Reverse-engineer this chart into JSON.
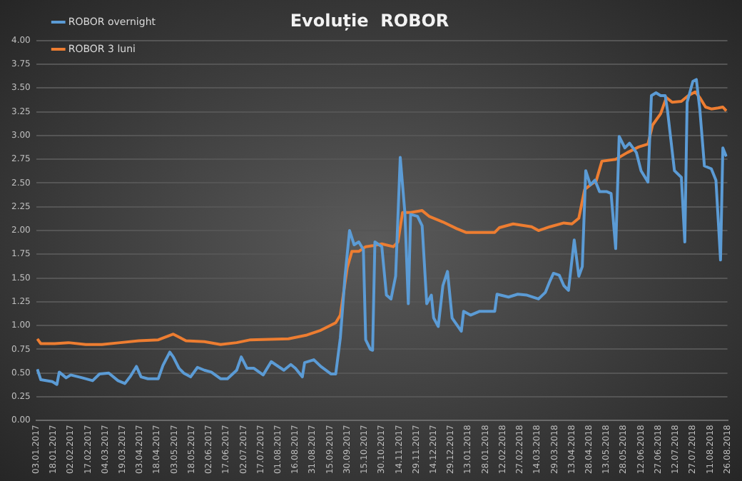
{
  "chart_data": {
    "type": "line",
    "title": "Evoluție  ROBOR",
    "legend": "top left",
    "grid": "y",
    "marker": "none",
    "line_style": "solid",
    "xlim": [
      "2017-01-03",
      "2018-08-26"
    ],
    "xticks": [
      {
        "value": "2017-01-03",
        "label": "03.01.2017"
      },
      {
        "value": "2017-01-18",
        "label": "18.01.2017"
      },
      {
        "value": "2017-02-02",
        "label": "02.02.2017"
      },
      {
        "value": "2017-02-17",
        "label": "17.02.2017"
      },
      {
        "value": "2017-03-04",
        "label": "04.03.2017"
      },
      {
        "value": "2017-03-19",
        "label": "19.03.2017"
      },
      {
        "value": "2017-04-03",
        "label": "03.04.2017"
      },
      {
        "value": "2017-04-18",
        "label": "18.04.2017"
      },
      {
        "value": "2017-05-03",
        "label": "03.05.2017"
      },
      {
        "value": "2017-05-18",
        "label": "18.05.2017"
      },
      {
        "value": "2017-06-02",
        "label": "02.06.2017"
      },
      {
        "value": "2017-06-17",
        "label": "17.06.2017"
      },
      {
        "value": "2017-07-02",
        "label": "02.07.2017"
      },
      {
        "value": "2017-07-17",
        "label": "17.07.2017"
      },
      {
        "value": "2017-08-01",
        "label": "01.08.2017"
      },
      {
        "value": "2017-08-16",
        "label": "16.08.2017"
      },
      {
        "value": "2017-08-31",
        "label": "31.08.2017"
      },
      {
        "value": "2017-09-15",
        "label": "15.09.2017"
      },
      {
        "value": "2017-09-30",
        "label": "30.09.2017"
      },
      {
        "value": "2017-10-15",
        "label": "15.10.2017"
      },
      {
        "value": "2017-10-30",
        "label": "30.10.2017"
      },
      {
        "value": "2017-11-14",
        "label": "14.11.2017"
      },
      {
        "value": "2017-11-29",
        "label": "29.11.2017"
      },
      {
        "value": "2017-12-14",
        "label": "14.12.2017"
      },
      {
        "value": "2017-12-29",
        "label": "29.12.2017"
      },
      {
        "value": "2018-01-13",
        "label": "13.01.2018"
      },
      {
        "value": "2018-01-28",
        "label": "28.01.2018"
      },
      {
        "value": "2018-02-12",
        "label": "12.02.2018"
      },
      {
        "value": "2018-02-27",
        "label": "27.02.2018"
      },
      {
        "value": "2018-03-14",
        "label": "14.03.2018"
      },
      {
        "value": "2018-03-29",
        "label": "29.03.2018"
      },
      {
        "value": "2018-04-13",
        "label": "13.04.2018"
      },
      {
        "value": "2018-04-28",
        "label": "28.04.2018"
      },
      {
        "value": "2018-05-13",
        "label": "13.05.2018"
      },
      {
        "value": "2018-05-28",
        "label": "28.05.2018"
      },
      {
        "value": "2018-06-12",
        "label": "12.06.2018"
      },
      {
        "value": "2018-06-27",
        "label": "27.06.2018"
      },
      {
        "value": "2018-07-12",
        "label": "12.07.2018"
      },
      {
        "value": "2018-07-27",
        "label": "27.07.2018"
      },
      {
        "value": "2018-08-11",
        "label": "11.08.2018"
      },
      {
        "value": "2018-08-26",
        "label": "26.08.2018"
      }
    ],
    "ylim": [
      0,
      4
    ],
    "yticks": [
      {
        "value": 0,
        "label": "0.00"
      },
      {
        "value": 0.25,
        "label": "0.25"
      },
      {
        "value": 0.5,
        "label": "0.50"
      },
      {
        "value": 0.75,
        "label": "0.75"
      },
      {
        "value": 1,
        "label": "1.00"
      },
      {
        "value": 1.25,
        "label": "1.25"
      },
      {
        "value": 1.5,
        "label": "1.50"
      },
      {
        "value": 1.75,
        "label": "1.75"
      },
      {
        "value": 2,
        "label": "2.00"
      },
      {
        "value": 2.25,
        "label": "2.25"
      },
      {
        "value": 2.5,
        "label": "2.50"
      },
      {
        "value": 2.75,
        "label": "2.75"
      },
      {
        "value": 3,
        "label": "3.00"
      },
      {
        "value": 3.25,
        "label": "3.25"
      },
      {
        "value": 3.5,
        "label": "3.50"
      },
      {
        "value": 3.75,
        "label": "3.75"
      },
      {
        "value": 4,
        "label": "4.00"
      }
    ],
    "series": [
      {
        "name": "ROBOR overnight",
        "color": "#5b9bd5",
        "x": [
          "2017-01-04",
          "2017-01-07",
          "2017-01-17",
          "2017-01-21",
          "2017-01-23",
          "2017-01-29",
          "2017-02-02",
          "2017-02-12",
          "2017-02-21",
          "2017-02-27",
          "2017-03-07",
          "2017-03-15",
          "2017-03-21",
          "2017-03-26",
          "2017-03-31",
          "2017-04-04",
          "2017-04-10",
          "2017-04-19",
          "2017-04-23",
          "2017-04-29",
          "2017-05-02",
          "2017-05-07",
          "2017-05-11",
          "2017-05-17",
          "2017-05-23",
          "2017-05-29",
          "2017-06-04",
          "2017-06-12",
          "2017-06-18",
          "2017-06-26",
          "2017-06-30",
          "2017-07-05",
          "2017-07-11",
          "2017-07-19",
          "2017-07-26",
          "2017-08-06",
          "2017-08-12",
          "2017-08-16",
          "2017-08-22",
          "2017-08-24",
          "2017-09-01",
          "2017-09-07",
          "2017-09-16",
          "2017-09-20",
          "2017-09-24",
          "2017-09-28",
          "2017-10-02",
          "2017-10-06",
          "2017-10-10",
          "2017-10-14",
          "2017-10-16",
          "2017-10-20",
          "2017-10-22",
          "2017-10-24",
          "2017-10-30",
          "2017-11-03",
          "2017-11-07",
          "2017-11-11",
          "2017-11-15",
          "2017-11-19",
          "2017-11-22",
          "2017-11-24",
          "2017-11-30",
          "2017-12-04",
          "2017-12-08",
          "2017-12-12",
          "2017-12-14",
          "2017-12-18",
          "2017-12-22",
          "2017-12-26",
          "2017-12-30",
          "2018-01-03",
          "2018-01-07",
          "2018-01-09",
          "2018-01-15",
          "2018-01-23",
          "2018-02-05",
          "2018-02-07",
          "2018-02-17",
          "2018-02-25",
          "2018-03-05",
          "2018-03-15",
          "2018-03-21",
          "2018-03-25",
          "2018-03-28",
          "2018-04-02",
          "2018-04-06",
          "2018-04-10",
          "2018-04-15",
          "2018-04-19",
          "2018-04-22",
          "2018-04-25",
          "2018-04-29",
          "2018-05-03",
          "2018-05-07",
          "2018-05-13",
          "2018-05-17",
          "2018-05-21",
          "2018-05-24",
          "2018-05-29",
          "2018-06-02",
          "2018-06-08",
          "2018-06-12",
          "2018-06-18",
          "2018-06-21",
          "2018-06-25",
          "2018-06-29",
          "2018-07-03",
          "2018-07-05",
          "2018-07-11",
          "2018-07-17",
          "2018-07-20",
          "2018-07-22",
          "2018-07-27",
          "2018-07-30",
          "2018-08-02",
          "2018-08-06",
          "2018-08-12",
          "2018-08-16",
          "2018-08-20",
          "2018-08-22",
          "2018-08-25"
        ],
        "values": [
          0.54,
          0.43,
          0.41,
          0.38,
          0.51,
          0.45,
          0.48,
          0.45,
          0.42,
          0.49,
          0.5,
          0.42,
          0.39,
          0.47,
          0.57,
          0.46,
          0.44,
          0.44,
          0.58,
          0.72,
          0.67,
          0.55,
          0.5,
          0.46,
          0.56,
          0.53,
          0.51,
          0.44,
          0.44,
          0.53,
          0.67,
          0.55,
          0.55,
          0.48,
          0.62,
          0.53,
          0.59,
          0.55,
          0.46,
          0.61,
          0.64,
          0.57,
          0.49,
          0.49,
          0.87,
          1.51,
          2.0,
          1.85,
          1.88,
          1.8,
          0.85,
          0.75,
          0.74,
          1.88,
          1.83,
          1.32,
          1.28,
          1.52,
          2.77,
          2.19,
          1.23,
          2.17,
          2.15,
          2.05,
          1.23,
          1.32,
          1.08,
          0.99,
          1.42,
          1.57,
          1.08,
          1.01,
          0.94,
          1.15,
          1.11,
          1.15,
          1.15,
          1.33,
          1.3,
          1.33,
          1.32,
          1.28,
          1.35,
          1.47,
          1.55,
          1.53,
          1.42,
          1.37,
          1.9,
          1.52,
          1.62,
          2.63,
          2.48,
          2.53,
          2.41,
          2.41,
          2.39,
          1.81,
          2.99,
          2.87,
          2.92,
          2.82,
          2.63,
          2.51,
          3.42,
          3.45,
          3.42,
          3.42,
          3.26,
          2.63,
          2.56,
          1.88,
          3.35,
          3.57,
          3.59,
          3.28,
          2.68,
          2.65,
          2.53,
          1.69,
          2.87,
          2.78
        ]
      },
      {
        "name": "ROBOR 3 luni",
        "color": "#ed7d31",
        "x": [
          "2017-01-04",
          "2017-01-07",
          "2017-01-19",
          "2017-01-31",
          "2017-02-15",
          "2017-03-01",
          "2017-03-17",
          "2017-04-02",
          "2017-04-19",
          "2017-05-02",
          "2017-05-13",
          "2017-05-29",
          "2017-06-12",
          "2017-06-26",
          "2017-07-08",
          "2017-08-10",
          "2017-08-26",
          "2017-09-07",
          "2017-09-20",
          "2017-09-24",
          "2017-09-30",
          "2017-10-04",
          "2017-10-10",
          "2017-10-16",
          "2017-10-22",
          "2017-10-30",
          "2017-11-09",
          "2017-11-13",
          "2017-11-17",
          "2017-11-24",
          "2017-12-04",
          "2017-12-10",
          "2017-12-22",
          "2018-01-03",
          "2018-01-11",
          "2018-02-05",
          "2018-02-09",
          "2018-02-21",
          "2018-03-09",
          "2018-03-15",
          "2018-03-25",
          "2018-04-06",
          "2018-04-13",
          "2018-04-19",
          "2018-04-24",
          "2018-04-29",
          "2018-05-04",
          "2018-05-09",
          "2018-05-21",
          "2018-05-31",
          "2018-06-10",
          "2018-06-18",
          "2018-06-22",
          "2018-06-29",
          "2018-07-04",
          "2018-07-09",
          "2018-07-17",
          "2018-07-23",
          "2018-07-29",
          "2018-08-02",
          "2018-08-07",
          "2018-08-12",
          "2018-08-18",
          "2018-08-22",
          "2018-08-25"
        ],
        "values": [
          0.86,
          0.81,
          0.81,
          0.82,
          0.8,
          0.8,
          0.82,
          0.84,
          0.85,
          0.91,
          0.84,
          0.83,
          0.8,
          0.82,
          0.85,
          0.86,
          0.9,
          0.95,
          1.03,
          1.11,
          1.61,
          1.78,
          1.78,
          1.83,
          1.84,
          1.86,
          1.83,
          1.88,
          2.19,
          2.19,
          2.21,
          2.15,
          2.09,
          2.02,
          1.98,
          1.98,
          2.03,
          2.07,
          2.04,
          2.0,
          2.04,
          2.08,
          2.07,
          2.13,
          2.43,
          2.48,
          2.52,
          2.73,
          2.75,
          2.82,
          2.88,
          2.91,
          3.11,
          3.23,
          3.4,
          3.35,
          3.36,
          3.42,
          3.46,
          3.4,
          3.3,
          3.28,
          3.29,
          3.3,
          3.26
        ]
      }
    ]
  }
}
